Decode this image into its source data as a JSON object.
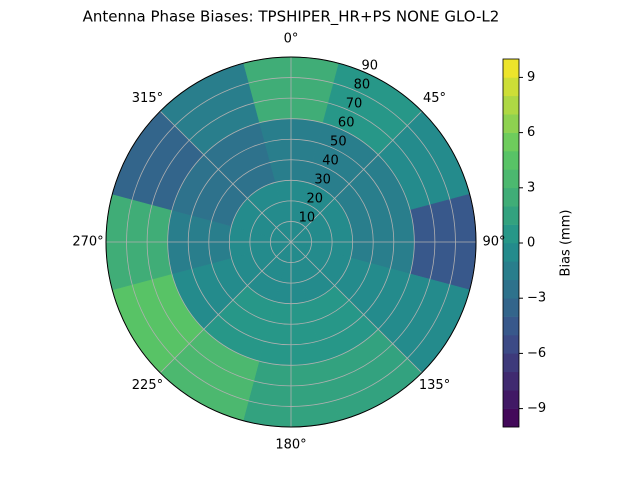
{
  "chart_data": {
    "type": "polar-contour",
    "title": "Antenna Phase Biases: TPSHIPER_HR+PS  NONE GLO-L2",
    "colorbar_label": "Bias (mm)",
    "colormap": "viridis",
    "levels": 20,
    "clim": [
      -10,
      10
    ],
    "cticks": [
      {
        "value": -9,
        "label": "−9"
      },
      {
        "value": -6,
        "label": "−6"
      },
      {
        "value": -3,
        "label": "−3"
      },
      0,
      3,
      6,
      9
    ],
    "theta_ticks": [
      {
        "value": 0,
        "label": "0°"
      },
      {
        "value": 45,
        "label": "45°"
      },
      {
        "value": 90,
        "label": "90°"
      },
      {
        "value": 135,
        "label": "135°"
      },
      {
        "value": 180,
        "label": "180°"
      },
      {
        "value": 225,
        "label": "225°"
      },
      {
        "value": 270,
        "label": "270°"
      },
      {
        "value": 315,
        "label": "315°"
      }
    ],
    "rlim": [
      0,
      90
    ],
    "rticks": [
      10,
      20,
      30,
      40,
      50,
      60,
      70,
      80,
      90
    ],
    "grid": true,
    "azimuth": [
      0,
      30,
      60,
      90,
      120,
      150,
      180,
      210,
      240,
      270,
      300,
      330
    ],
    "radius_edges": [
      0,
      30,
      60,
      90
    ],
    "values": [
      [
        -1,
        -1,
        -1,
        -1,
        -1,
        -1,
        -1,
        -1,
        -1,
        -1,
        -1,
        -1
      ],
      [
        -2,
        -2,
        -2,
        -2,
        -1,
        0,
        0,
        0,
        -1,
        -2,
        -3,
        -3
      ],
      [
        2,
        0,
        -1,
        -5,
        -1,
        1,
        1,
        3,
        4,
        2,
        -4,
        -2
      ]
    ]
  }
}
